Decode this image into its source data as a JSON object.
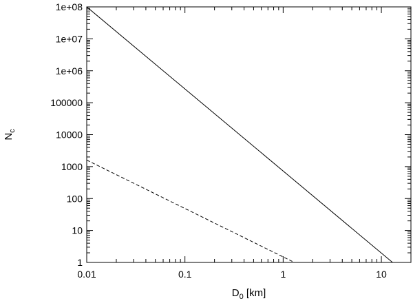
{
  "chart_data": {
    "type": "line",
    "xlabel": "D0 [km]",
    "xlabel_main": "D",
    "xlabel_sub": "0",
    "xlabel_suffix": " [km]",
    "ylabel": "Nc",
    "ylabel_main": "N",
    "ylabel_sub": "c",
    "x_scale": "log",
    "y_scale": "log",
    "xlim": [
      0.01,
      20
    ],
    "ylim": [
      1,
      100000000
    ],
    "x_ticks": [
      0.01,
      0.1,
      1,
      10
    ],
    "x_tick_labels": [
      "0.01",
      "0.1",
      "1",
      "10"
    ],
    "y_ticks": [
      1,
      10,
      100,
      1000,
      10000,
      100000,
      1000000,
      10000000,
      100000000
    ],
    "y_tick_labels": [
      "1",
      "10",
      "100",
      "1000",
      "10000",
      "100000",
      "1e+06",
      "1e+07",
      "1e+08"
    ],
    "grid": false,
    "legend": "none",
    "series": [
      {
        "style": "solid",
        "color": "#000000",
        "x": [
          0.01,
          13
        ],
        "y": [
          100000000,
          1
        ]
      },
      {
        "style": "dashed",
        "color": "#000000",
        "x": [
          0.01,
          1.3
        ],
        "y": [
          1600,
          1
        ]
      }
    ]
  }
}
